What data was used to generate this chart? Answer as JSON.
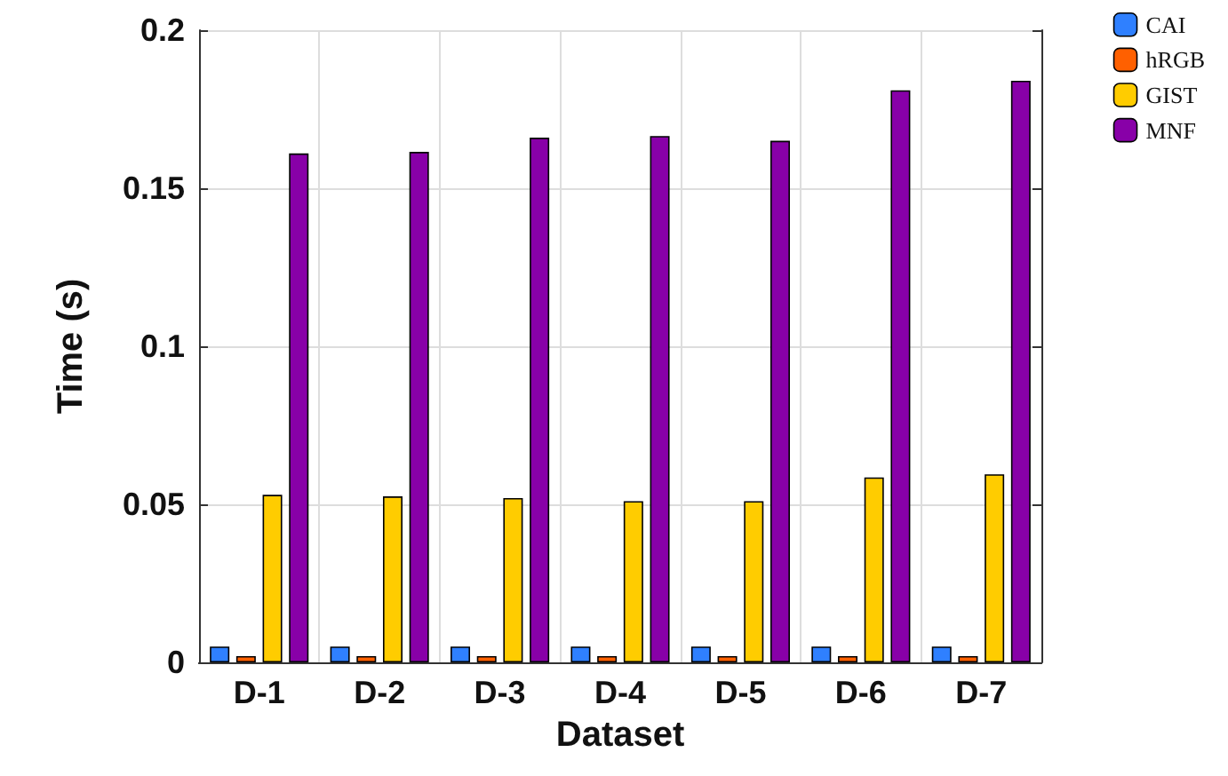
{
  "chart_data": {
    "type": "bar",
    "xlabel": "Dataset",
    "ylabel": "Time (s)",
    "categories": [
      "D-1",
      "D-2",
      "D-3",
      "D-4",
      "D-5",
      "D-6",
      "D-7"
    ],
    "series": [
      {
        "name": "CAI",
        "color": "#2f80ff",
        "values": [
          0.005,
          0.005,
          0.005,
          0.005,
          0.005,
          0.005,
          0.005
        ]
      },
      {
        "name": "hRGB",
        "color": "#ff6000",
        "values": [
          0.002,
          0.002,
          0.002,
          0.002,
          0.002,
          0.002,
          0.002
        ]
      },
      {
        "name": "GIST",
        "color": "#ffcc00",
        "values": [
          0.053,
          0.0525,
          0.052,
          0.051,
          0.051,
          0.0585,
          0.0595
        ]
      },
      {
        "name": "MNF",
        "color": "#8800a8",
        "values": [
          0.161,
          0.1615,
          0.166,
          0.1665,
          0.165,
          0.181,
          0.184
        ]
      }
    ],
    "ylim": [
      0,
      0.2
    ],
    "yticks": [
      0,
      0.05,
      0.1,
      0.15,
      0.2
    ],
    "grid": true,
    "legend": "top right"
  }
}
